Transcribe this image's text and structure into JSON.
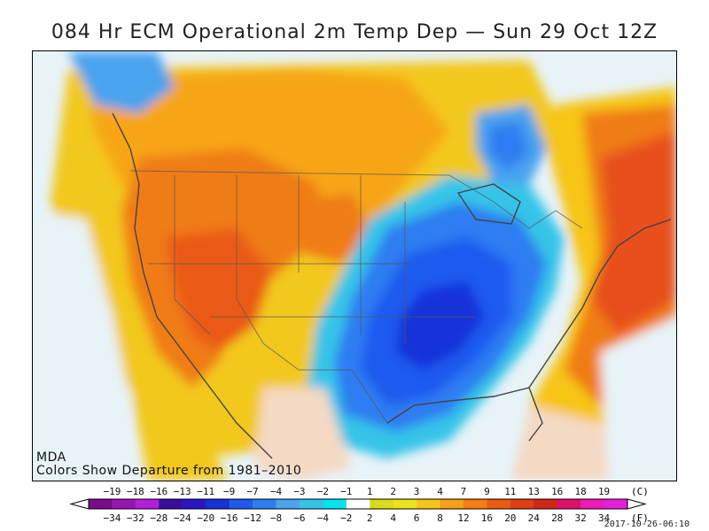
{
  "title": "084 Hr ECM Operational 2m Temp Dep — Sun 29 Oct 12Z",
  "map": {
    "credit_source": "MDA",
    "credit_note": "Colors Show Departure from 1981–2010"
  },
  "legend": {
    "celsius_unit": "(C)",
    "fahrenheit_unit": "(F)",
    "celsius_ticks": [
      "−19",
      "−18",
      "−16",
      "−13",
      "−11",
      "−9",
      "−7",
      "−4",
      "−3",
      "−2",
      "−1",
      "1",
      "2",
      "3",
      "4",
      "7",
      "9",
      "11",
      "13",
      "16",
      "18",
      "19"
    ],
    "fahrenheit_ticks": [
      "−34",
      "−32",
      "−28",
      "−24",
      "−20",
      "−16",
      "−12",
      "−8",
      "−6",
      "−4",
      "−2",
      "2",
      "4",
      "6",
      "8",
      "12",
      "16",
      "20",
      "24",
      "28",
      "32",
      "34"
    ],
    "bin_colors": [
      "#7a0c8c",
      "#9b14b3",
      "#b51fdb",
      "#3b0d9e",
      "#2a15c4",
      "#1432d9",
      "#1e5af0",
      "#2f7df2",
      "#4aa3ef",
      "#35c4e8",
      "#00e4f2",
      "#ffffff",
      "#d8dc1a",
      "#ece21c",
      "#f6c519",
      "#f8a016",
      "#f77c12",
      "#ec5b12",
      "#e23d14",
      "#d22418",
      "#e0116a",
      "#f01ab6",
      "#e41fd9"
    ]
  },
  "timestamp": "2017-10-26-06:10"
}
